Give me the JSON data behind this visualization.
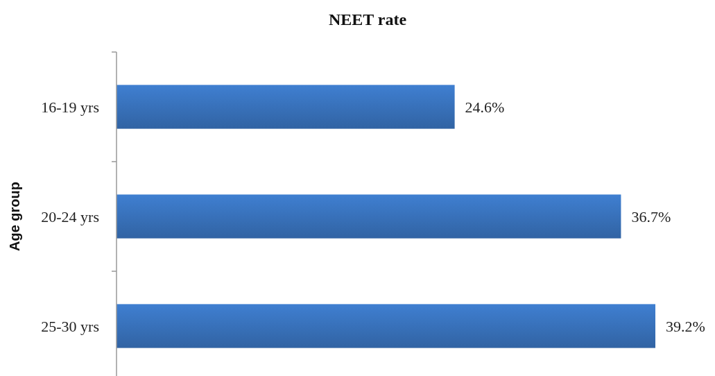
{
  "chart_data": {
    "type": "bar",
    "orientation": "horizontal",
    "title": "NEET rate",
    "ylabel": "Age group",
    "categories": [
      "16-19 yrs",
      "20-24 yrs",
      "25-30 yrs"
    ],
    "values": [
      24.6,
      36.7,
      39.2
    ],
    "value_labels": [
      "24.6%",
      "36.7%",
      "39.2%"
    ],
    "color": "#3a74bf"
  }
}
